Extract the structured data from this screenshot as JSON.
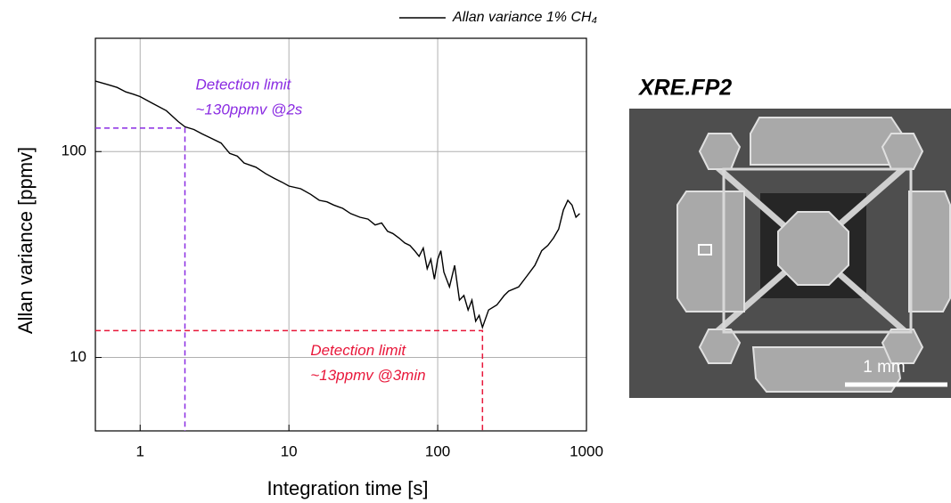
{
  "chart_data": {
    "type": "line",
    "x": [
      0.5,
      0.6,
      0.7,
      0.8,
      0.9,
      1,
      1.2,
      1.5,
      1.8,
      2,
      2.3,
      2.6,
      3,
      3.5,
      4,
      4.5,
      5,
      6,
      7,
      8,
      9,
      10,
      12,
      14,
      16,
      18,
      20,
      23,
      26,
      30,
      34,
      38,
      42,
      46,
      50,
      55,
      60,
      65,
      70,
      75,
      80,
      85,
      90,
      95,
      100,
      105,
      110,
      120,
      130,
      140,
      150,
      160,
      170,
      180,
      190,
      200,
      220,
      250,
      280,
      300,
      350,
      400,
      450,
      500,
      550,
      600,
      650,
      700,
      750,
      800,
      850,
      900
    ],
    "series": [
      {
        "name": "Allan variance 1% CH₄",
        "color": "#000000",
        "values": [
          220,
          212,
          205,
          195,
          190,
          185,
          172,
          158,
          140,
          132,
          128,
          122,
          116,
          110,
          98,
          95,
          88,
          84,
          78,
          74,
          71,
          68,
          66,
          62,
          58,
          57,
          55,
          53,
          50,
          48,
          47,
          44,
          45,
          41,
          40,
          38,
          36,
          35,
          33,
          31,
          34,
          27,
          30,
          24,
          30,
          33,
          26,
          22,
          28,
          19,
          20,
          17,
          19,
          15,
          16,
          14,
          17,
          18,
          20,
          21,
          22,
          25,
          28,
          33,
          35,
          38,
          42,
          52,
          58,
          55,
          48,
          50
        ]
      }
    ],
    "xlabel": "Integration time [s]",
    "ylabel": "Allan variance [ppmv]",
    "xlim": [
      0.5,
      1000
    ],
    "ylim": [
      4.4,
      355
    ],
    "xticks": [
      1,
      10,
      100,
      1000
    ],
    "yticks": [
      10,
      100
    ],
    "log_x": true,
    "log_y": true,
    "grid": true,
    "legend": "top-right",
    "annotations": [
      {
        "x": 2,
        "y": 130,
        "color": "#8a2be2",
        "lines": [
          "Detection limit",
          "~130ppmv @2s"
        ]
      },
      {
        "x": 200,
        "y": 13.5,
        "color": "#e8173a",
        "lines": [
          "Detection limit",
          "~13ppmv @3min"
        ]
      }
    ]
  },
  "image": {
    "title": "XRE.FP2",
    "scale_bar": "1 mm"
  }
}
